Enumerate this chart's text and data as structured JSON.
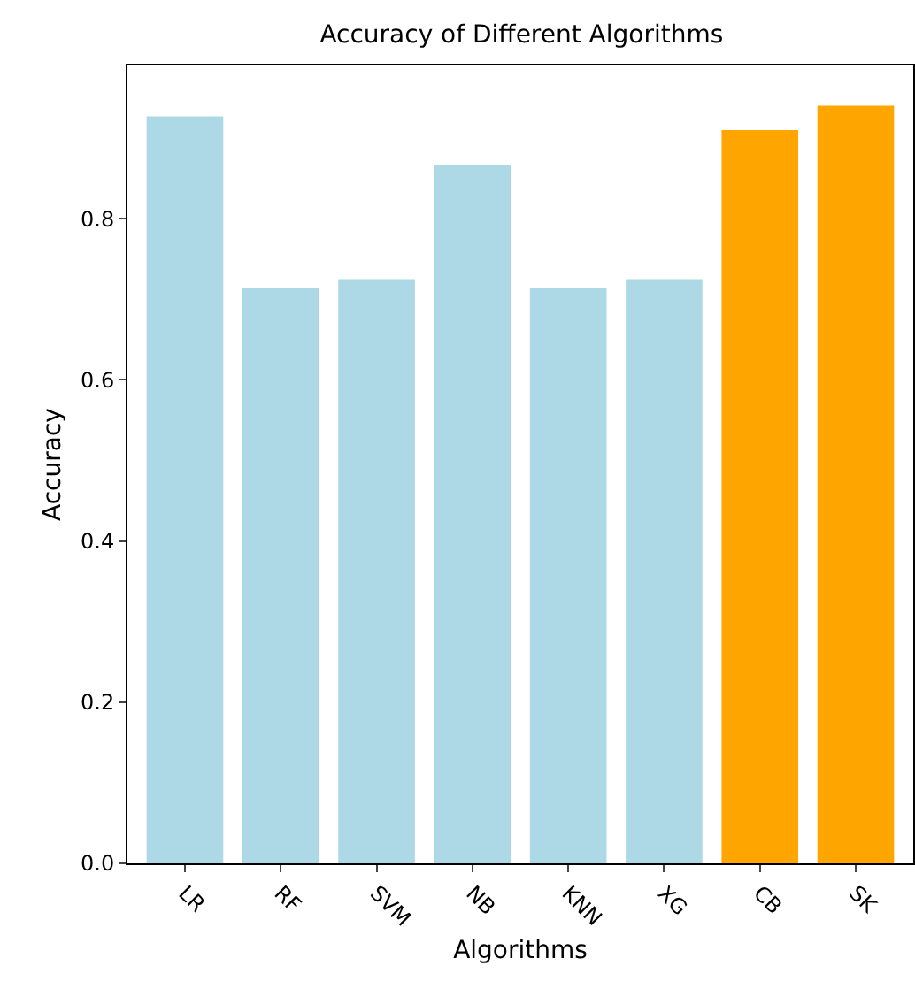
{
  "chart_data": {
    "type": "bar",
    "title": "Accuracy of Different Algorithms",
    "xlabel": "Algorithms",
    "ylabel": "Accuracy",
    "categories": [
      "LR",
      "RF",
      "SVM",
      "NB",
      "KNN",
      "XG",
      "CB",
      "SK"
    ],
    "values": [
      0.927,
      0.714,
      0.725,
      0.866,
      0.714,
      0.725,
      0.91,
      0.94
    ],
    "colors": [
      "#add8e6",
      "#add8e6",
      "#add8e6",
      "#add8e6",
      "#add8e6",
      "#add8e6",
      "#ffa500",
      "#ffa500"
    ],
    "ylim": [
      0,
      0.99
    ],
    "yticks": [
      {
        "value": 0,
        "label": "0.0"
      },
      {
        "value": 0.2,
        "label": "0.2"
      },
      {
        "value": 0.4,
        "label": "0.4"
      },
      {
        "value": 0.6,
        "label": "0.6"
      },
      {
        "value": 0.8,
        "label": "0.8"
      }
    ],
    "grid": false,
    "legend": false
  }
}
